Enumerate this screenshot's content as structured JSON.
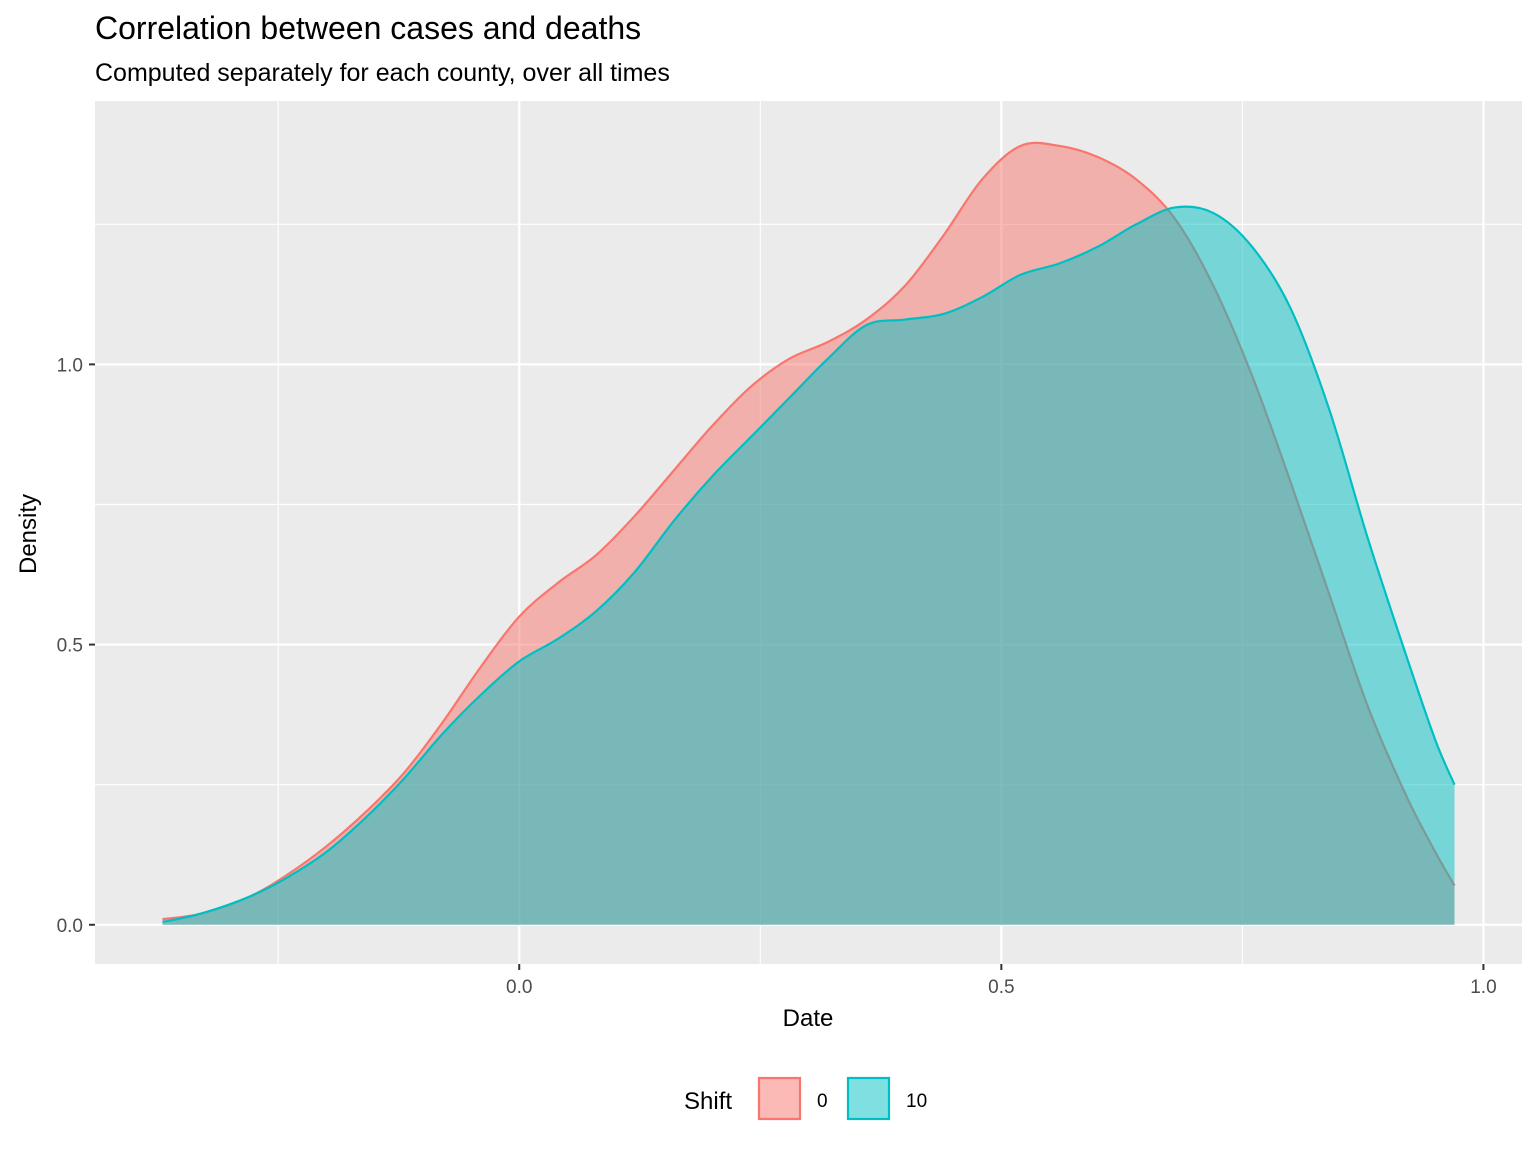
{
  "colors": {
    "panel_background": "#EBEBEB",
    "grid_major": "#FFFFFF",
    "tick_mark": "#333333"
  },
  "chart_data": {
    "type": "area",
    "title": "Correlation between cases and deaths",
    "subtitle": "Computed separately for each county, over all times",
    "xlabel": "Date",
    "ylabel": "Density",
    "xlim": [
      -0.44,
      1.04
    ],
    "ylim": [
      -0.07,
      1.47
    ],
    "xticks": [
      0.0,
      0.5,
      1.0
    ],
    "xtick_labels": [
      "0.0",
      "0.5",
      "1.0"
    ],
    "yticks": [
      0.0,
      0.5,
      1.0
    ],
    "ytick_labels": [
      "0.0",
      "0.5",
      "1.0"
    ],
    "grid": true,
    "legend": {
      "title": "Shift",
      "position": "bottom"
    },
    "series": [
      {
        "name": "0",
        "line_color": "#F8766D",
        "fill_color": "#F8766D",
        "fill_opacity": 0.5,
        "points": [
          [
            -0.37,
            0.01
          ],
          [
            -0.33,
            0.02
          ],
          [
            -0.28,
            0.05
          ],
          [
            -0.24,
            0.09
          ],
          [
            -0.2,
            0.14
          ],
          [
            -0.16,
            0.2
          ],
          [
            -0.12,
            0.27
          ],
          [
            -0.08,
            0.36
          ],
          [
            -0.04,
            0.46
          ],
          [
            0.0,
            0.55
          ],
          [
            0.04,
            0.61
          ],
          [
            0.08,
            0.66
          ],
          [
            0.12,
            0.73
          ],
          [
            0.16,
            0.81
          ],
          [
            0.2,
            0.89
          ],
          [
            0.24,
            0.96
          ],
          [
            0.28,
            1.01
          ],
          [
            0.32,
            1.04
          ],
          [
            0.36,
            1.08
          ],
          [
            0.4,
            1.14
          ],
          [
            0.44,
            1.23
          ],
          [
            0.48,
            1.33
          ],
          [
            0.52,
            1.39
          ],
          [
            0.56,
            1.39
          ],
          [
            0.6,
            1.37
          ],
          [
            0.64,
            1.33
          ],
          [
            0.68,
            1.26
          ],
          [
            0.72,
            1.14
          ],
          [
            0.76,
            0.98
          ],
          [
            0.8,
            0.79
          ],
          [
            0.84,
            0.59
          ],
          [
            0.88,
            0.39
          ],
          [
            0.92,
            0.23
          ],
          [
            0.95,
            0.13
          ],
          [
            0.97,
            0.07
          ]
        ]
      },
      {
        "name": "10",
        "line_color": "#00BFC4",
        "fill_color": "#00BFC4",
        "fill_opacity": 0.5,
        "points": [
          [
            -0.37,
            0.005
          ],
          [
            -0.33,
            0.02
          ],
          [
            -0.28,
            0.05
          ],
          [
            -0.24,
            0.085
          ],
          [
            -0.2,
            0.13
          ],
          [
            -0.16,
            0.19
          ],
          [
            -0.12,
            0.26
          ],
          [
            -0.08,
            0.34
          ],
          [
            -0.04,
            0.41
          ],
          [
            0.0,
            0.47
          ],
          [
            0.04,
            0.51
          ],
          [
            0.08,
            0.56
          ],
          [
            0.12,
            0.63
          ],
          [
            0.16,
            0.72
          ],
          [
            0.2,
            0.8
          ],
          [
            0.24,
            0.87
          ],
          [
            0.28,
            0.94
          ],
          [
            0.32,
            1.01
          ],
          [
            0.36,
            1.07
          ],
          [
            0.4,
            1.08
          ],
          [
            0.44,
            1.09
          ],
          [
            0.48,
            1.12
          ],
          [
            0.52,
            1.16
          ],
          [
            0.56,
            1.18
          ],
          [
            0.6,
            1.21
          ],
          [
            0.64,
            1.25
          ],
          [
            0.68,
            1.28
          ],
          [
            0.72,
            1.27
          ],
          [
            0.76,
            1.21
          ],
          [
            0.8,
            1.1
          ],
          [
            0.84,
            0.92
          ],
          [
            0.88,
            0.69
          ],
          [
            0.92,
            0.48
          ],
          [
            0.95,
            0.33
          ],
          [
            0.97,
            0.25
          ]
        ]
      }
    ]
  }
}
